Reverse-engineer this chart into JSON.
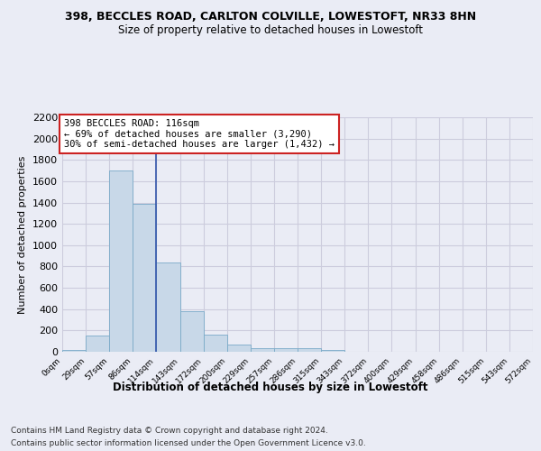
{
  "title_line1": "398, BECCLES ROAD, CARLTON COLVILLE, LOWESTOFT, NR33 8HN",
  "title_line2": "Size of property relative to detached houses in Lowestoft",
  "xlabel": "Distribution of detached houses by size in Lowestoft",
  "ylabel": "Number of detached properties",
  "footer_line1": "Contains HM Land Registry data © Crown copyright and database right 2024.",
  "footer_line2": "Contains public sector information licensed under the Open Government Licence v3.0.",
  "annotation_line1": "398 BECCLES ROAD: 116sqm",
  "annotation_line2": "← 69% of detached houses are smaller (3,290)",
  "annotation_line3": "30% of semi-detached houses are larger (1,432) →",
  "bar_edges": [
    0,
    29,
    57,
    86,
    114,
    143,
    172,
    200,
    229,
    257,
    286,
    315,
    343,
    372,
    400,
    429,
    458,
    486,
    515,
    543,
    572
  ],
  "bar_heights": [
    15,
    155,
    1700,
    1390,
    835,
    385,
    165,
    65,
    35,
    30,
    30,
    15,
    0,
    0,
    0,
    0,
    0,
    0,
    0,
    0
  ],
  "bar_color": "#c8d8e8",
  "bar_edgecolor": "#7aaac8",
  "vline_x": 114,
  "vline_color": "#3355aa",
  "ylim": [
    0,
    2200
  ],
  "yticks": [
    0,
    200,
    400,
    600,
    800,
    1000,
    1200,
    1400,
    1600,
    1800,
    2000,
    2200
  ],
  "grid_color": "#ccccdd",
  "background_color": "#eaecf5",
  "annotation_box_facecolor": "#ffffff",
  "annotation_box_edgecolor": "#cc2222",
  "title_fontsize": 9,
  "subtitle_fontsize": 8.5,
  "ylabel_fontsize": 8,
  "xlabel_fontsize": 8.5,
  "footer_fontsize": 6.5,
  "ytick_fontsize": 8,
  "xtick_fontsize": 6.5,
  "annot_fontsize": 7.5
}
